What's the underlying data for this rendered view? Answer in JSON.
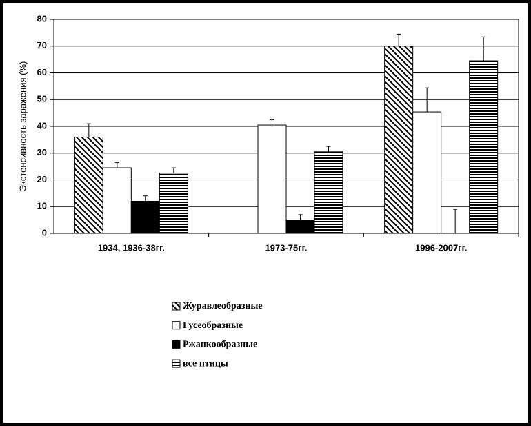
{
  "chart_data": {
    "type": "bar",
    "y_label": "Экстенсивность заражения   (%)",
    "categories": [
      "1934, 1936-38гг.",
      "1973-75гг.",
      "1996-2007гг."
    ],
    "series": [
      {
        "name": "Журавлеобразные",
        "color": "#000000",
        "pattern": "diagonal",
        "values": [
          36,
          null,
          70
        ],
        "errors": [
          5,
          null,
          4.5
        ]
      },
      {
        "name": "Гусеобразные",
        "color": "#ffffff",
        "pattern": "solid",
        "values": [
          24.5,
          40.5,
          45.4
        ],
        "errors": [
          2,
          2,
          9
        ]
      },
      {
        "name": "Ржанкообразные",
        "color": "#000000",
        "pattern": "solid",
        "values": [
          12,
          5,
          0
        ],
        "errors": [
          2,
          2,
          9
        ]
      },
      {
        "name": "все птицы",
        "color": "#000000",
        "pattern": "horizontal",
        "values": [
          22.5,
          30.5,
          64.5
        ],
        "errors": [
          2,
          2,
          9
        ]
      }
    ],
    "ylim": [
      0,
      80
    ],
    "yticks": [
      0,
      10,
      20,
      30,
      40,
      50,
      60,
      70,
      80
    ],
    "grid": true
  }
}
